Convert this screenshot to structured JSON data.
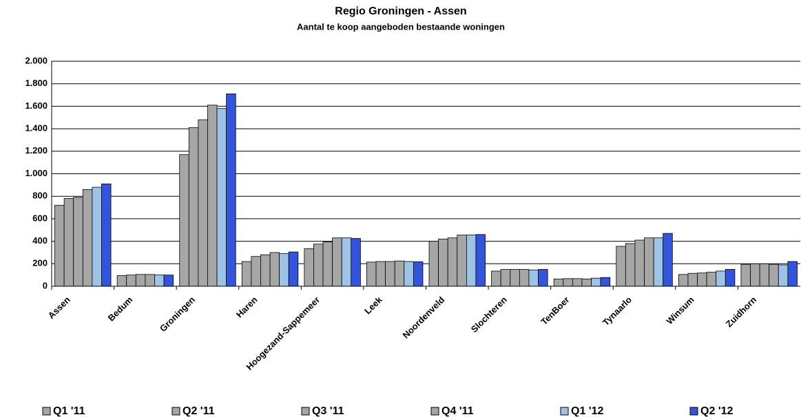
{
  "chart_data": {
    "type": "bar",
    "title": "Regio Groningen - Assen",
    "subtitle": "Aantal te koop aangeboden bestaande woningen",
    "categories": [
      "Assen",
      "Bedum",
      "Groningen",
      "Haren",
      "Hoogezand-Sappemeer",
      "Leek",
      "Noordenveld",
      "Slochteren",
      "TenBoer",
      "Tynaarlo",
      "Winsum",
      "Zuidhorn"
    ],
    "series": [
      {
        "name": "Q1 '11",
        "color": "#a6a6a6",
        "values": [
          720,
          95,
          1170,
          220,
          335,
          215,
          400,
          135,
          65,
          355,
          105,
          195
        ]
      },
      {
        "name": "Q2 '11",
        "color": "#a6a6a6",
        "values": [
          780,
          100,
          1410,
          265,
          375,
          220,
          420,
          150,
          68,
          380,
          115,
          200
        ]
      },
      {
        "name": "Q3 '11",
        "color": "#a6a6a6",
        "values": [
          790,
          105,
          1480,
          280,
          395,
          220,
          430,
          150,
          68,
          410,
          118,
          200
        ]
      },
      {
        "name": "Q4 '11",
        "color": "#a6a6a6",
        "values": [
          860,
          105,
          1610,
          300,
          430,
          225,
          455,
          150,
          65,
          430,
          125,
          195
        ]
      },
      {
        "name": "Q1 '12",
        "color": "#9dc3e6",
        "values": [
          880,
          100,
          1580,
          290,
          430,
          220,
          455,
          145,
          72,
          430,
          135,
          190
        ]
      },
      {
        "name": "Q2 '12",
        "color": "#3355dd",
        "values": [
          910,
          100,
          1710,
          305,
          425,
          218,
          460,
          150,
          78,
          470,
          150,
          220
        ]
      }
    ],
    "ylim": [
      0,
      2000
    ],
    "yticks": [
      0,
      200,
      400,
      600,
      800,
      {
        "value": 1000,
        "label": "1.000"
      },
      {
        "value": 1200,
        "label": "1.200"
      },
      {
        "value": 1400,
        "label": "1.400"
      },
      {
        "value": 1600,
        "label": "1.600"
      },
      {
        "value": 1800,
        "label": "1.800"
      },
      {
        "value": 2000,
        "label": "2.000"
      }
    ],
    "grid": true,
    "legend": "bottom"
  }
}
